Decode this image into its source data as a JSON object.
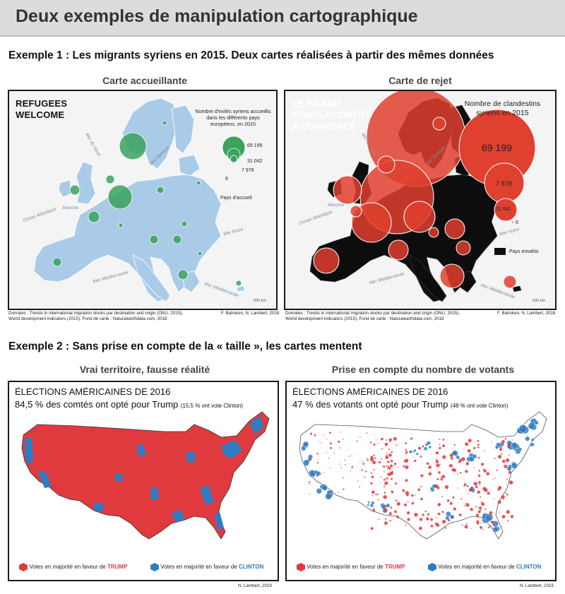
{
  "header": {
    "title": "Deux exemples de manipulation cartographique"
  },
  "example1": {
    "title": "Exemple 1 : Les migrants syriens en 2015. Deux cartes réalisées à partir des mêmes données",
    "map_left": {
      "subtitle": "Carte accueillante",
      "label_line1": "REFUGEES",
      "label_line2": "WELCOME",
      "legend_title": "Nombre d'exilés syriens accueillis dans les différents pays européens, en 2015",
      "legend_values": [
        "69 199",
        "31 042",
        "7 978",
        "6"
      ],
      "legend_area_label": "Pays d'accueil",
      "sea_labels": [
        "Mer du Nord",
        "Mer Baltique",
        "Manche",
        "Océan Atlantique",
        "Mer Noire",
        "Mer Méditerranée",
        "Mer Méditerranée"
      ],
      "scale": "500 km",
      "source_line1": "Données : Trends in international migration stocks par destination and origin (ONU, 2015),",
      "source_line2": "World development indicators (2015).  Fond de carte : Naturalearthdata.com, 2018",
      "credit": "F. Bahoken, N. Lambert, 2018",
      "colors": {
        "land": "#a9cbe8",
        "circles": "#3aa35e",
        "background": "#f4f4f4"
      }
    },
    "map_right": {
      "subtitle": "Carte de rejet",
      "label_line1": "LE GRAND",
      "label_line2": "REMPLACEMENT",
      "label_line3": "A COMMENCÉ",
      "legend_title_line1": "Nombre de clandestins",
      "legend_title_line2": "syriens en 2015",
      "legend_values": [
        "69 199",
        "7 978",
        "31 042",
        "6"
      ],
      "legend_area_label": "Pays envahis",
      "sea_labels": [
        "Mer du Nord",
        "Mer Baltique",
        "Manche",
        "Océan Atlantique",
        "Mer Noire",
        "Mer Méditerranée",
        "Mer Méditerranée"
      ],
      "scale": "500 km",
      "source_line1": "Données : Trends in international migration stocks par destination and origin (ONU, 2015),",
      "source_line2": "World development indicators (2015).  Fond de carte : Naturalearthdata.com, 2018",
      "credit": "F. Bahoken, N. Lambert, 2018",
      "colors": {
        "land": "#0d0d0d",
        "circles": "#e0402f",
        "background": "#f4f4f4"
      }
    }
  },
  "example2": {
    "title": "Exemple 2 : Sans prise en compte de la « taille », les cartes mentent",
    "map_left": {
      "subtitle": "Vrai territoire, fausse réalité",
      "heading": "ÉLECTIONS AMÉRICAINES DE 2016",
      "stat_value": "84,5 %",
      "stat_text": " des comtés ont opté pour Trump ",
      "stat_note": "(15,5 % ont vote Clinton)",
      "legend_trump_prefix": "Votes en majorité en faveur de ",
      "legend_trump_name": "TRUMP",
      "legend_clinton_prefix": "Votes en majorité en faveur de ",
      "legend_clinton_name": "CLINTON",
      "credit": "N. Lambert, 2019"
    },
    "map_right": {
      "subtitle": "Prise en compte du nombre de votants",
      "heading": "ÉLECTIONS AMÉRICAINES DE 2016",
      "stat_value": "47 %",
      "stat_text": " des votants ont opté pour Trump ",
      "stat_note": "(48 % ont vote Clinton)",
      "legend_trump_prefix": "Votes en majorité en faveur de ",
      "legend_trump_name": "TRUMP",
      "legend_clinton_prefix": "Votes en majorité en faveur de ",
      "legend_clinton_name": "CLINTON",
      "credit": "N. Lambert, 2019"
    },
    "colors": {
      "trump": "#e03a3e",
      "clinton": "#2f7bc2"
    }
  }
}
